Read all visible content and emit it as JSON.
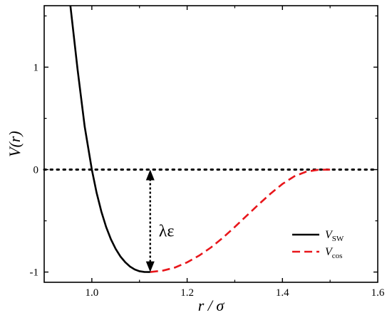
{
  "chart_data": {
    "type": "line",
    "title": "",
    "xlabel": "r / σ",
    "ylabel": "V(r)",
    "xlim": [
      0.9,
      1.6
    ],
    "ylim": [
      -1.1,
      1.6
    ],
    "x_ticks": [
      1.0,
      1.2,
      1.4,
      1.6
    ],
    "x_tick_labels": [
      "1.0",
      "1.2",
      "1.4",
      "1.6"
    ],
    "y_ticks": [
      -1,
      0,
      1
    ],
    "y_tick_labels": [
      "-1",
      "0",
      "1"
    ],
    "grid": false,
    "legend_position": "bottom-right",
    "series": [
      {
        "name": "V_SW",
        "label_main": "V",
        "label_sub": "SW",
        "color": "#000000",
        "style": "solid",
        "x": [
          0.955,
          0.97,
          0.985,
          1.0,
          1.01,
          1.02,
          1.03,
          1.04,
          1.05,
          1.06,
          1.07,
          1.08,
          1.09,
          1.1,
          1.11,
          1.1225
        ],
        "y": [
          1.6,
          0.98,
          0.42,
          0.0,
          -0.226,
          -0.41,
          -0.56,
          -0.68,
          -0.774,
          -0.848,
          -0.904,
          -0.946,
          -0.975,
          -0.992,
          -0.999,
          -1.0
        ]
      },
      {
        "name": "V_cos",
        "label_main": "V",
        "label_sub": "cos",
        "color": "#e8161b",
        "style": "dashed",
        "x": [
          1.1225,
          1.15,
          1.175,
          1.2,
          1.225,
          1.25,
          1.275,
          1.3,
          1.325,
          1.35,
          1.375,
          1.4,
          1.425,
          1.45,
          1.475,
          1.5
        ],
        "y": [
          -1.0,
          -0.985,
          -0.955,
          -0.905,
          -0.84,
          -0.76,
          -0.665,
          -0.56,
          -0.45,
          -0.34,
          -0.235,
          -0.14,
          -0.065,
          -0.02,
          -0.002,
          0.0
        ]
      }
    ],
    "reference_line": {
      "y": 0,
      "style": "dotted",
      "color": "#000000"
    },
    "annotation": {
      "text": "λε",
      "x": 1.1225,
      "y_from": 0,
      "y_to": -1
    }
  }
}
